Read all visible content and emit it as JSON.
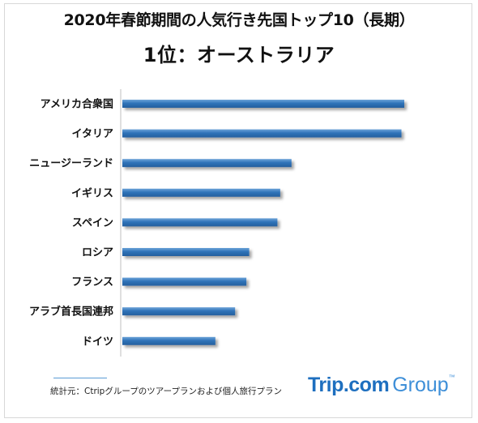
{
  "title": "2020年春節期間の人気行き先国トップ10（長期）",
  "subtitle": "1位：オーストラリア",
  "source": "統計元：Ctripグループのツアープランおよび個人旅行プラン",
  "brand": {
    "main": "Trip.com",
    "secondary": "Group",
    "mark": "™"
  },
  "colors": {
    "bar": "#2f73b9",
    "bar_light": "#6ea4d8",
    "axis": "#bfbfbf"
  },
  "chart_data": {
    "type": "bar",
    "orientation": "horizontal",
    "categories": [
      "アメリカ合衆国",
      "イタリア",
      "ニュージーランド",
      "イギリス",
      "スペイン",
      "ロシア",
      "フランス",
      "アラブ首長国連邦",
      "ドイツ"
    ],
    "values": [
      100,
      99,
      60,
      56,
      55,
      45,
      44,
      40,
      33
    ],
    "xlim": [
      0,
      100
    ],
    "grid": false,
    "legend": "none"
  }
}
